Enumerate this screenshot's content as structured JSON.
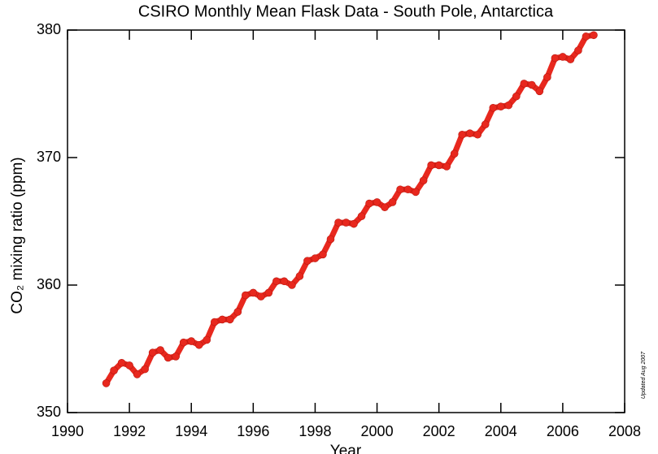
{
  "chart_data": {
    "type": "line",
    "title": "CSIRO Monthly Mean Flask Data - South Pole, Antarctica",
    "x_label": "Year",
    "y_label": "CO₂ mixing ratio (ppm)",
    "annotation": "Updated Aug 2007",
    "color": "#e8281e",
    "x": [
      1991.25,
      1991.5,
      1991.75,
      1992.0,
      1992.25,
      1992.5,
      1992.75,
      1993.0,
      1993.25,
      1993.5,
      1993.75,
      1994.0,
      1994.25,
      1994.5,
      1994.75,
      1995.0,
      1995.25,
      1995.5,
      1995.75,
      1996.0,
      1996.25,
      1996.5,
      1996.75,
      1997.0,
      1997.25,
      1997.5,
      1997.75,
      1998.0,
      1998.25,
      1998.5,
      1998.75,
      1999.0,
      1999.25,
      1999.5,
      1999.75,
      2000.0,
      2000.25,
      2000.5,
      2000.75,
      2001.0,
      2001.25,
      2001.5,
      2001.75,
      2002.0,
      2002.25,
      2002.5,
      2002.75,
      2003.0,
      2003.25,
      2003.5,
      2003.75,
      2004.0,
      2004.25,
      2004.5,
      2004.75,
      2005.0,
      2005.25,
      2005.5,
      2005.75,
      2006.0,
      2006.25,
      2006.5,
      2006.75,
      2007.0
    ],
    "values": [
      352.3,
      353.3,
      353.9,
      353.7,
      353.0,
      353.4,
      354.7,
      354.9,
      354.3,
      354.4,
      355.5,
      355.6,
      355.3,
      355.7,
      357.1,
      357.3,
      357.3,
      357.9,
      359.2,
      359.4,
      359.1,
      359.4,
      360.3,
      360.3,
      360.0,
      360.7,
      361.9,
      362.1,
      362.4,
      363.6,
      364.9,
      364.9,
      364.8,
      365.4,
      366.4,
      366.5,
      366.1,
      366.5,
      367.5,
      367.5,
      367.3,
      368.2,
      369.4,
      369.4,
      369.3,
      370.3,
      371.8,
      371.9,
      371.8,
      372.6,
      373.9,
      374.0,
      374.1,
      374.8,
      375.8,
      375.7,
      375.2,
      376.3,
      377.8,
      377.9,
      377.7,
      378.4,
      379.5,
      379.6
    ],
    "xlim": [
      1990,
      2008
    ],
    "xticks": [
      1990,
      1992,
      1994,
      1996,
      1998,
      2000,
      2002,
      2004,
      2006,
      2008
    ],
    "ylim": [
      350,
      380
    ],
    "yticks": [
      350,
      360,
      370,
      380
    ]
  }
}
